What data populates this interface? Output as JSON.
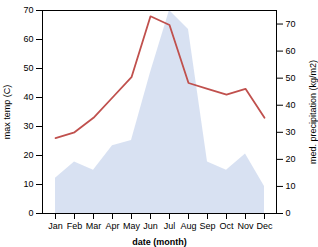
{
  "chart_data": {
    "type": "line",
    "categories": [
      "Jan",
      "Feb",
      "Mar",
      "Apr",
      "May",
      "Jun",
      "Jul",
      "Aug",
      "Sep",
      "Oct",
      "Nov",
      "Dec"
    ],
    "series": [
      {
        "type": "area",
        "axis": "y2",
        "color": "#b8c8e8",
        "values": [
          13,
          19,
          16,
          25,
          27,
          52,
          75,
          68,
          19,
          16,
          22,
          10
        ]
      },
      {
        "type": "line",
        "color": "#c0504d",
        "values": [
          26,
          28,
          33,
          40,
          47,
          68,
          65,
          45,
          43,
          41,
          43,
          33
        ]
      }
    ],
    "xlabel": "date (month)",
    "ylabel": "max temp (C)",
    "y2label": "med. precipitation (kg/m2)",
    "ylim": [
      0,
      70
    ],
    "yticks": [
      0,
      10,
      20,
      30,
      40,
      50,
      60,
      70
    ],
    "y2lim": [
      0,
      75
    ],
    "y2ticks": [
      0,
      10,
      20,
      30,
      40,
      50,
      60,
      70
    ],
    "grid": false
  }
}
